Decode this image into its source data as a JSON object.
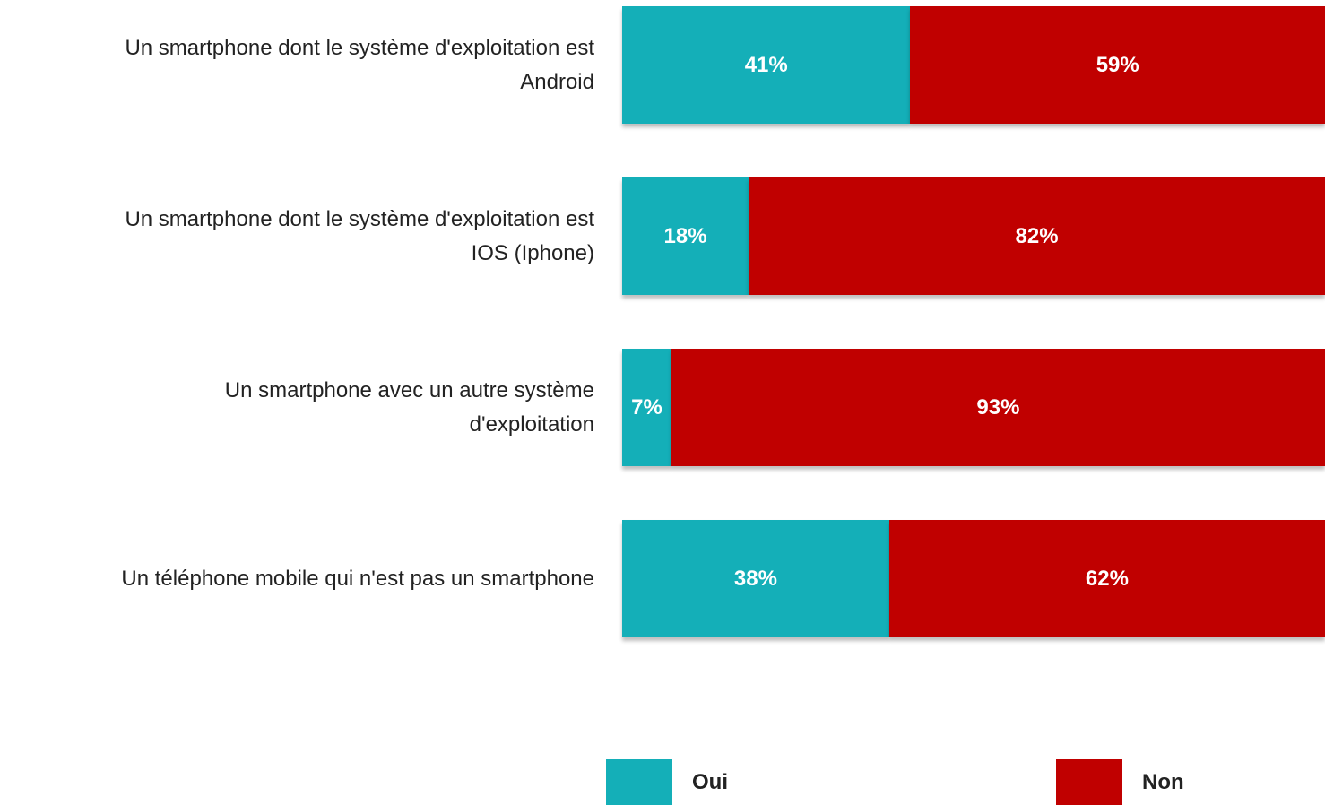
{
  "chart_data": {
    "type": "stacked_bar_horizontal",
    "categories": [
      "Un smartphone dont le système d'exploitation est\nAndroid",
      "Un smartphone dont le système d'exploitation est\nIOS (Iphone)",
      "Un smartphone avec un autre système\nd'exploitation",
      "Un téléphone mobile qui n'est pas un smartphone"
    ],
    "xlim": [
      0,
      100
    ],
    "series": [
      {
        "name": "Oui",
        "color": "#14afb8",
        "values": [
          41,
          18,
          7,
          38
        ],
        "value_labels": [
          "41%",
          "18%",
          "7%",
          "38%"
        ]
      },
      {
        "name": "Non",
        "color": "#c00000",
        "values": [
          59,
          82,
          93,
          62
        ],
        "value_labels": [
          "59%",
          "82%",
          "93%",
          "62%"
        ]
      }
    ],
    "legend": "bottom"
  }
}
